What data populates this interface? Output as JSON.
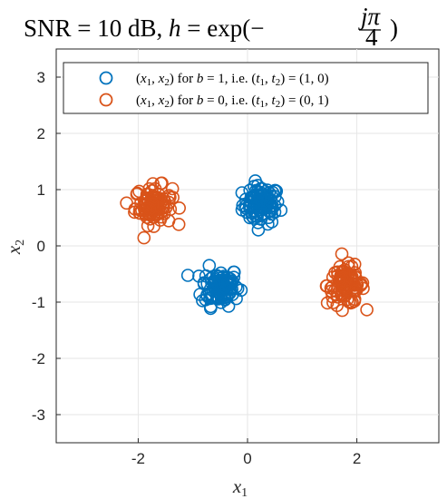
{
  "chart_data": {
    "type": "scatter",
    "title": "SNR = 10 dB, h = exp(−jπ/4 )",
    "xlabel": "x1",
    "ylabel": "x2",
    "xlim": [
      -3.5,
      3.5
    ],
    "ylim": [
      -3.5,
      3.5
    ],
    "xticks": [
      -2,
      0,
      2
    ],
    "yticks": [
      -3,
      -2,
      -1,
      0,
      1,
      2,
      3
    ],
    "grid": true,
    "legend_position": "top",
    "series": [
      {
        "name": "(x1, x2) for b = 1, i.e. (t1, t2) = (1, 0)",
        "color": "#0072BD",
        "marker": "open-circle",
        "clusters": [
          {
            "center": [
              0.25,
              0.73
            ],
            "spread": 0.17,
            "count": 95
          },
          {
            "center": [
              -0.5,
              -0.72
            ],
            "spread": 0.17,
            "count": 95
          }
        ]
      },
      {
        "name": "(x1, x2) for b = 0, i.e. (t1, t2) = (0, 1)",
        "color": "#D95319",
        "marker": "open-circle",
        "clusters": [
          {
            "center": [
              -1.72,
              0.72
            ],
            "spread": 0.17,
            "count": 95
          },
          {
            "center": [
              1.8,
              -0.7
            ],
            "spread": 0.17,
            "count": 95
          }
        ]
      }
    ]
  }
}
